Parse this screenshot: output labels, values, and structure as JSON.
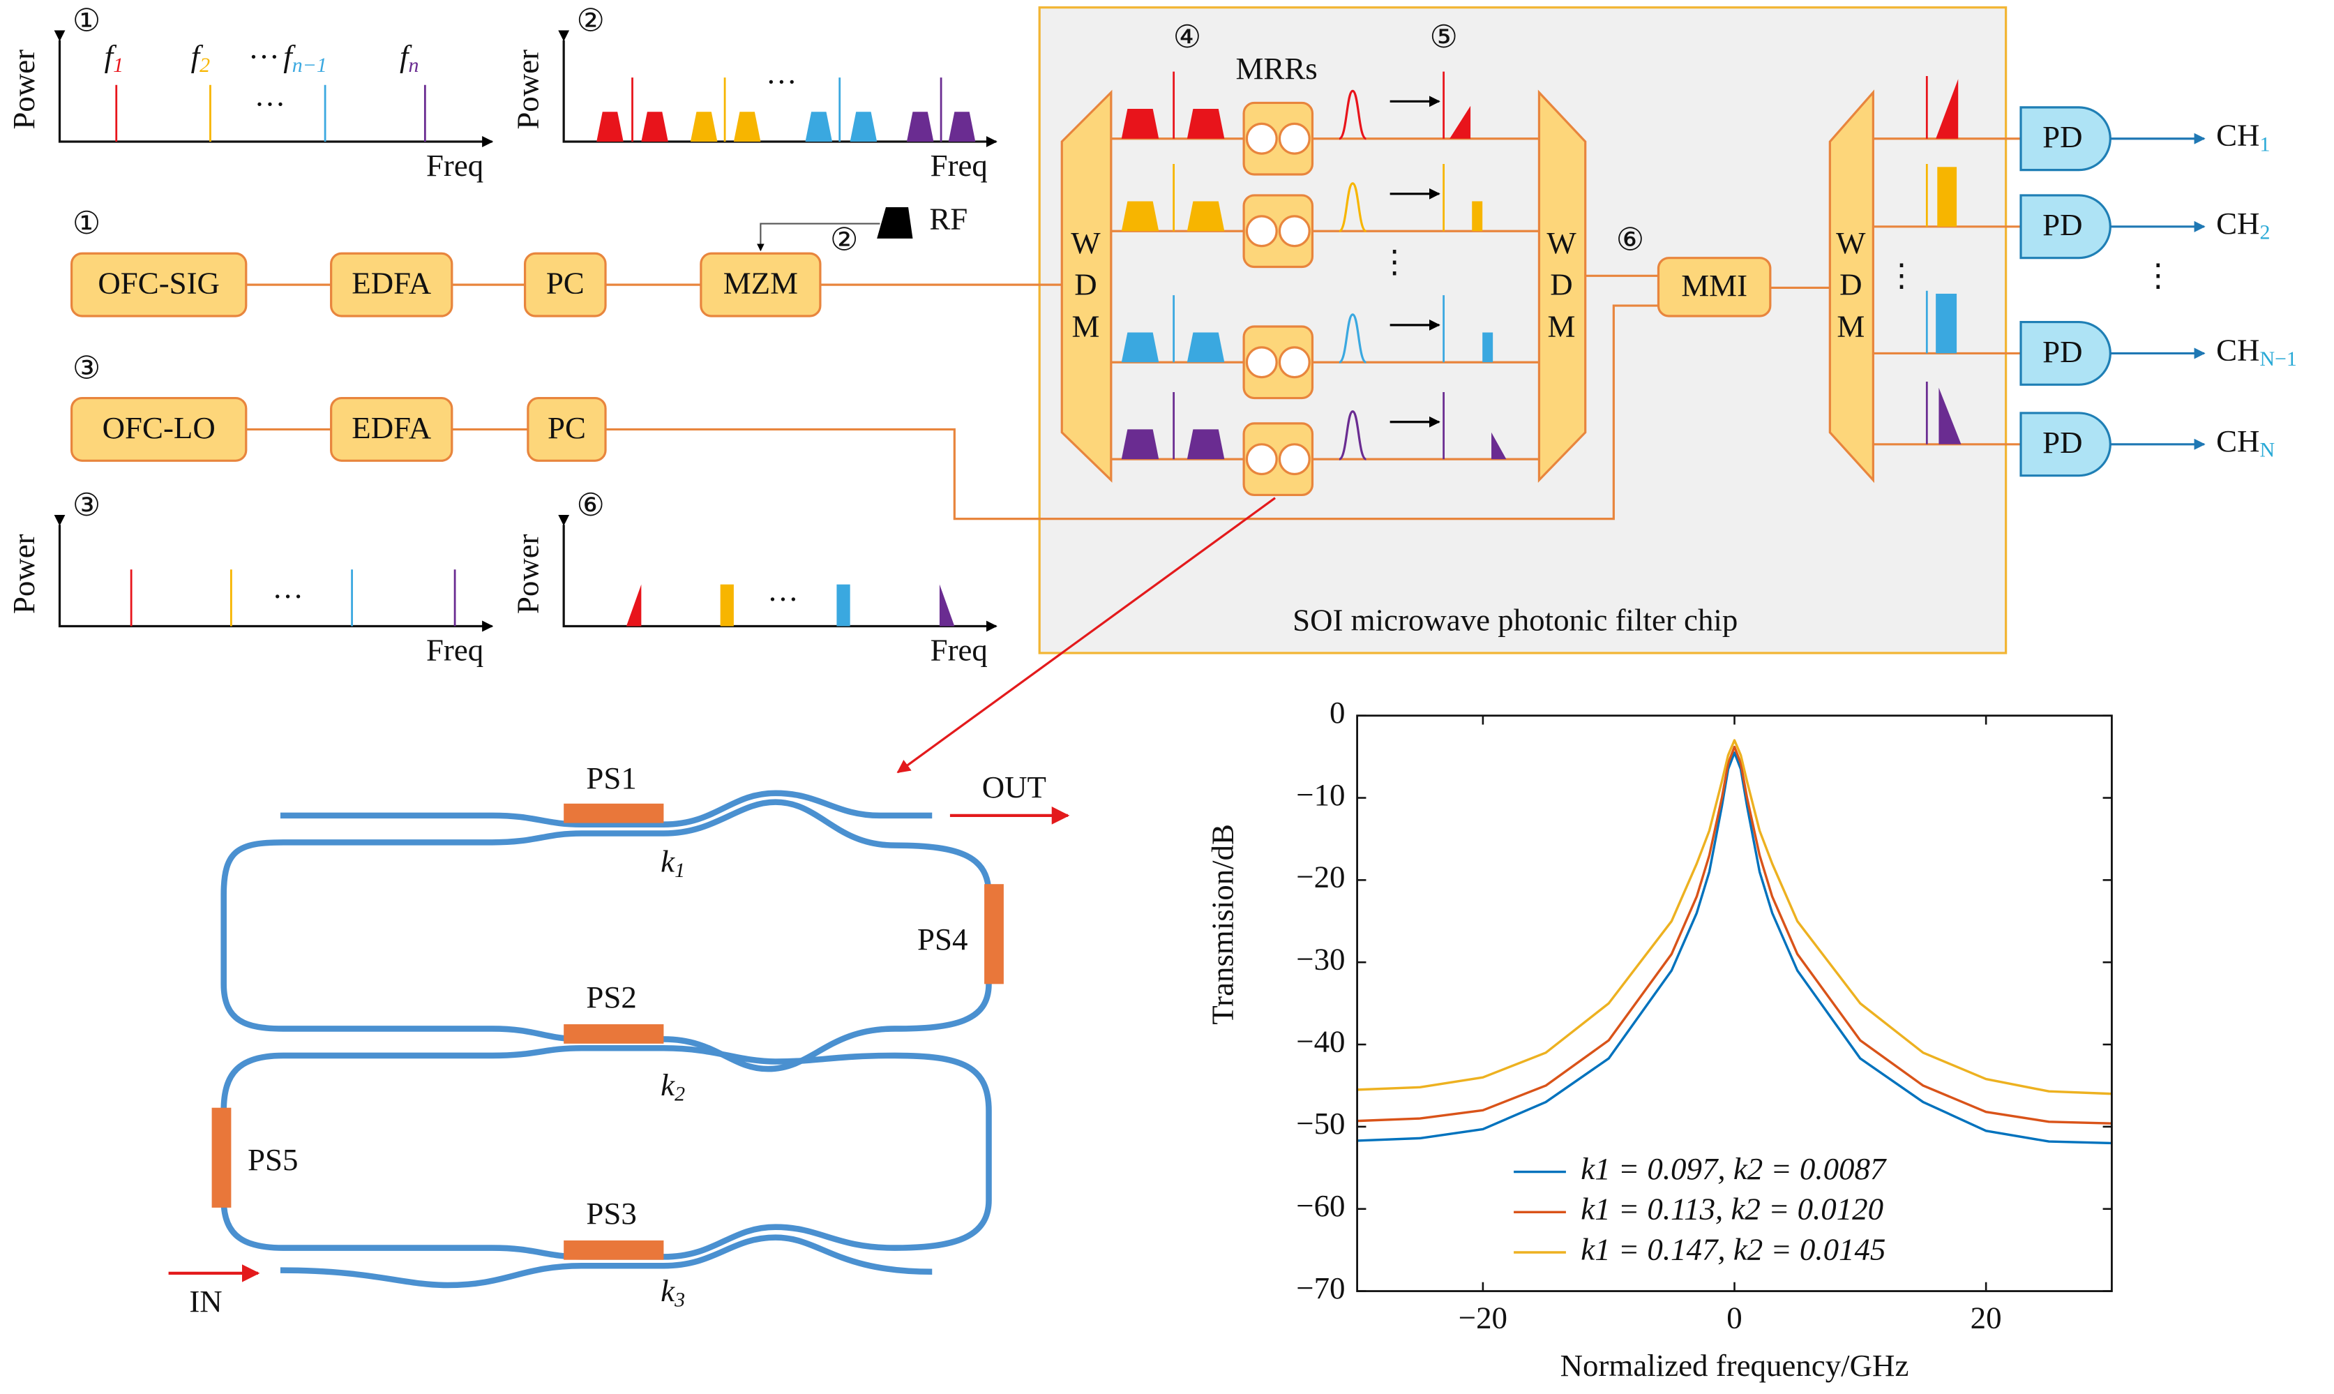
{
  "diagram": {
    "panels": [
      {
        "number": "①",
        "ylabel": "Power",
        "xlabel": "Freq"
      },
      {
        "number": "②",
        "ylabel": "Power",
        "xlabel": "Freq"
      },
      {
        "number": "③",
        "ylabel": "Power",
        "xlabel": "Freq"
      },
      {
        "number": "⑥",
        "ylabel": "Power",
        "xlabel": "Freq"
      }
    ],
    "freq_labels": [
      {
        "base": "f",
        "sub": "1"
      },
      {
        "base": "f",
        "sub": "2"
      },
      {
        "base": "f",
        "sub": "n−1"
      },
      {
        "base": "f",
        "sub": "n"
      }
    ],
    "ellipsis": "···",
    "vdots": "⋮",
    "blocks": {
      "ofc_sig": "OFC-SIG",
      "edfa": "EDFA",
      "pc": "PC",
      "mzm": "MZM",
      "ofc_lo": "OFC-LO",
      "rf": "RF",
      "wdm": [
        "W",
        "D",
        "M"
      ],
      "mrrs": "MRRs",
      "mmi": "MMI",
      "pd": "PD"
    },
    "markers": [
      "①",
      "②",
      "③",
      "④",
      "⑤",
      "⑥"
    ],
    "channels": [
      {
        "base": "CH",
        "sub": "1"
      },
      {
        "base": "CH",
        "sub": "2"
      },
      {
        "base": "CH",
        "sub": "N−1"
      },
      {
        "base": "CH",
        "sub": "N"
      }
    ],
    "chip_label": "SOI microwave photonic filter chip",
    "ring": {
      "ps": [
        "PS1",
        "PS2",
        "PS3",
        "PS4",
        "PS5"
      ],
      "k": [
        {
          "base": "k",
          "sub": "1"
        },
        {
          "base": "k",
          "sub": "2"
        },
        {
          "base": "k",
          "sub": "3"
        }
      ],
      "out": "OUT",
      "in": "IN"
    }
  },
  "chart_data": {
    "type": "line",
    "xlabel": "Normalized frequency/GHz",
    "ylabel": "Transmision/dB",
    "x": [
      -30,
      -25,
      -20,
      -15,
      -10,
      -5,
      -3,
      -2,
      -1,
      -0.5,
      0,
      0.5,
      1,
      2,
      3,
      5,
      10,
      15,
      20,
      25,
      30
    ],
    "series": [
      {
        "name": "k1 = 0.097,  k2 = 0.0087",
        "color": "#0072bd",
        "values": [
          -51.7,
          -51.4,
          -50.3,
          -47,
          -41.7,
          -31,
          -24,
          -19,
          -11,
          -6.5,
          -4.5,
          -6.5,
          -11,
          -19,
          -24,
          -31,
          -41.7,
          -47,
          -50.5,
          -51.8,
          -52
        ]
      },
      {
        "name": "k1 = 0.113,  k2 = 0.0120",
        "color": "#d95319",
        "values": [
          -49.3,
          -49,
          -48,
          -45,
          -39.5,
          -29,
          -22,
          -17,
          -10,
          -5.8,
          -3.8,
          -5.8,
          -10,
          -17,
          -22,
          -29,
          -39.5,
          -45,
          -48.2,
          -49.4,
          -49.6
        ]
      },
      {
        "name": "k1 = 0.147,  k2 = 0.0145",
        "color": "#edb120",
        "values": [
          -45.5,
          -45.2,
          -44,
          -41,
          -35,
          -25,
          -18,
          -14,
          -8,
          -4.8,
          -3,
          -4.8,
          -8,
          -14,
          -18,
          -25,
          -35,
          -41,
          -44.2,
          -45.7,
          -46
        ]
      }
    ],
    "xlim": [
      -30,
      30
    ],
    "ylim": [
      -70,
      0
    ],
    "xticks": [
      {
        "value": -20,
        "label": "−20"
      },
      0,
      20
    ],
    "yticks": [
      0,
      {
        "value": -10,
        "label": "−10"
      },
      {
        "value": -20,
        "label": "−20"
      },
      {
        "value": -30,
        "label": "−30"
      },
      {
        "value": -40,
        "label": "−40"
      },
      {
        "value": -50,
        "label": "−50"
      },
      {
        "value": -60,
        "label": "−60"
      },
      {
        "value": -70,
        "label": "−70"
      }
    ],
    "legend": "lower center"
  }
}
